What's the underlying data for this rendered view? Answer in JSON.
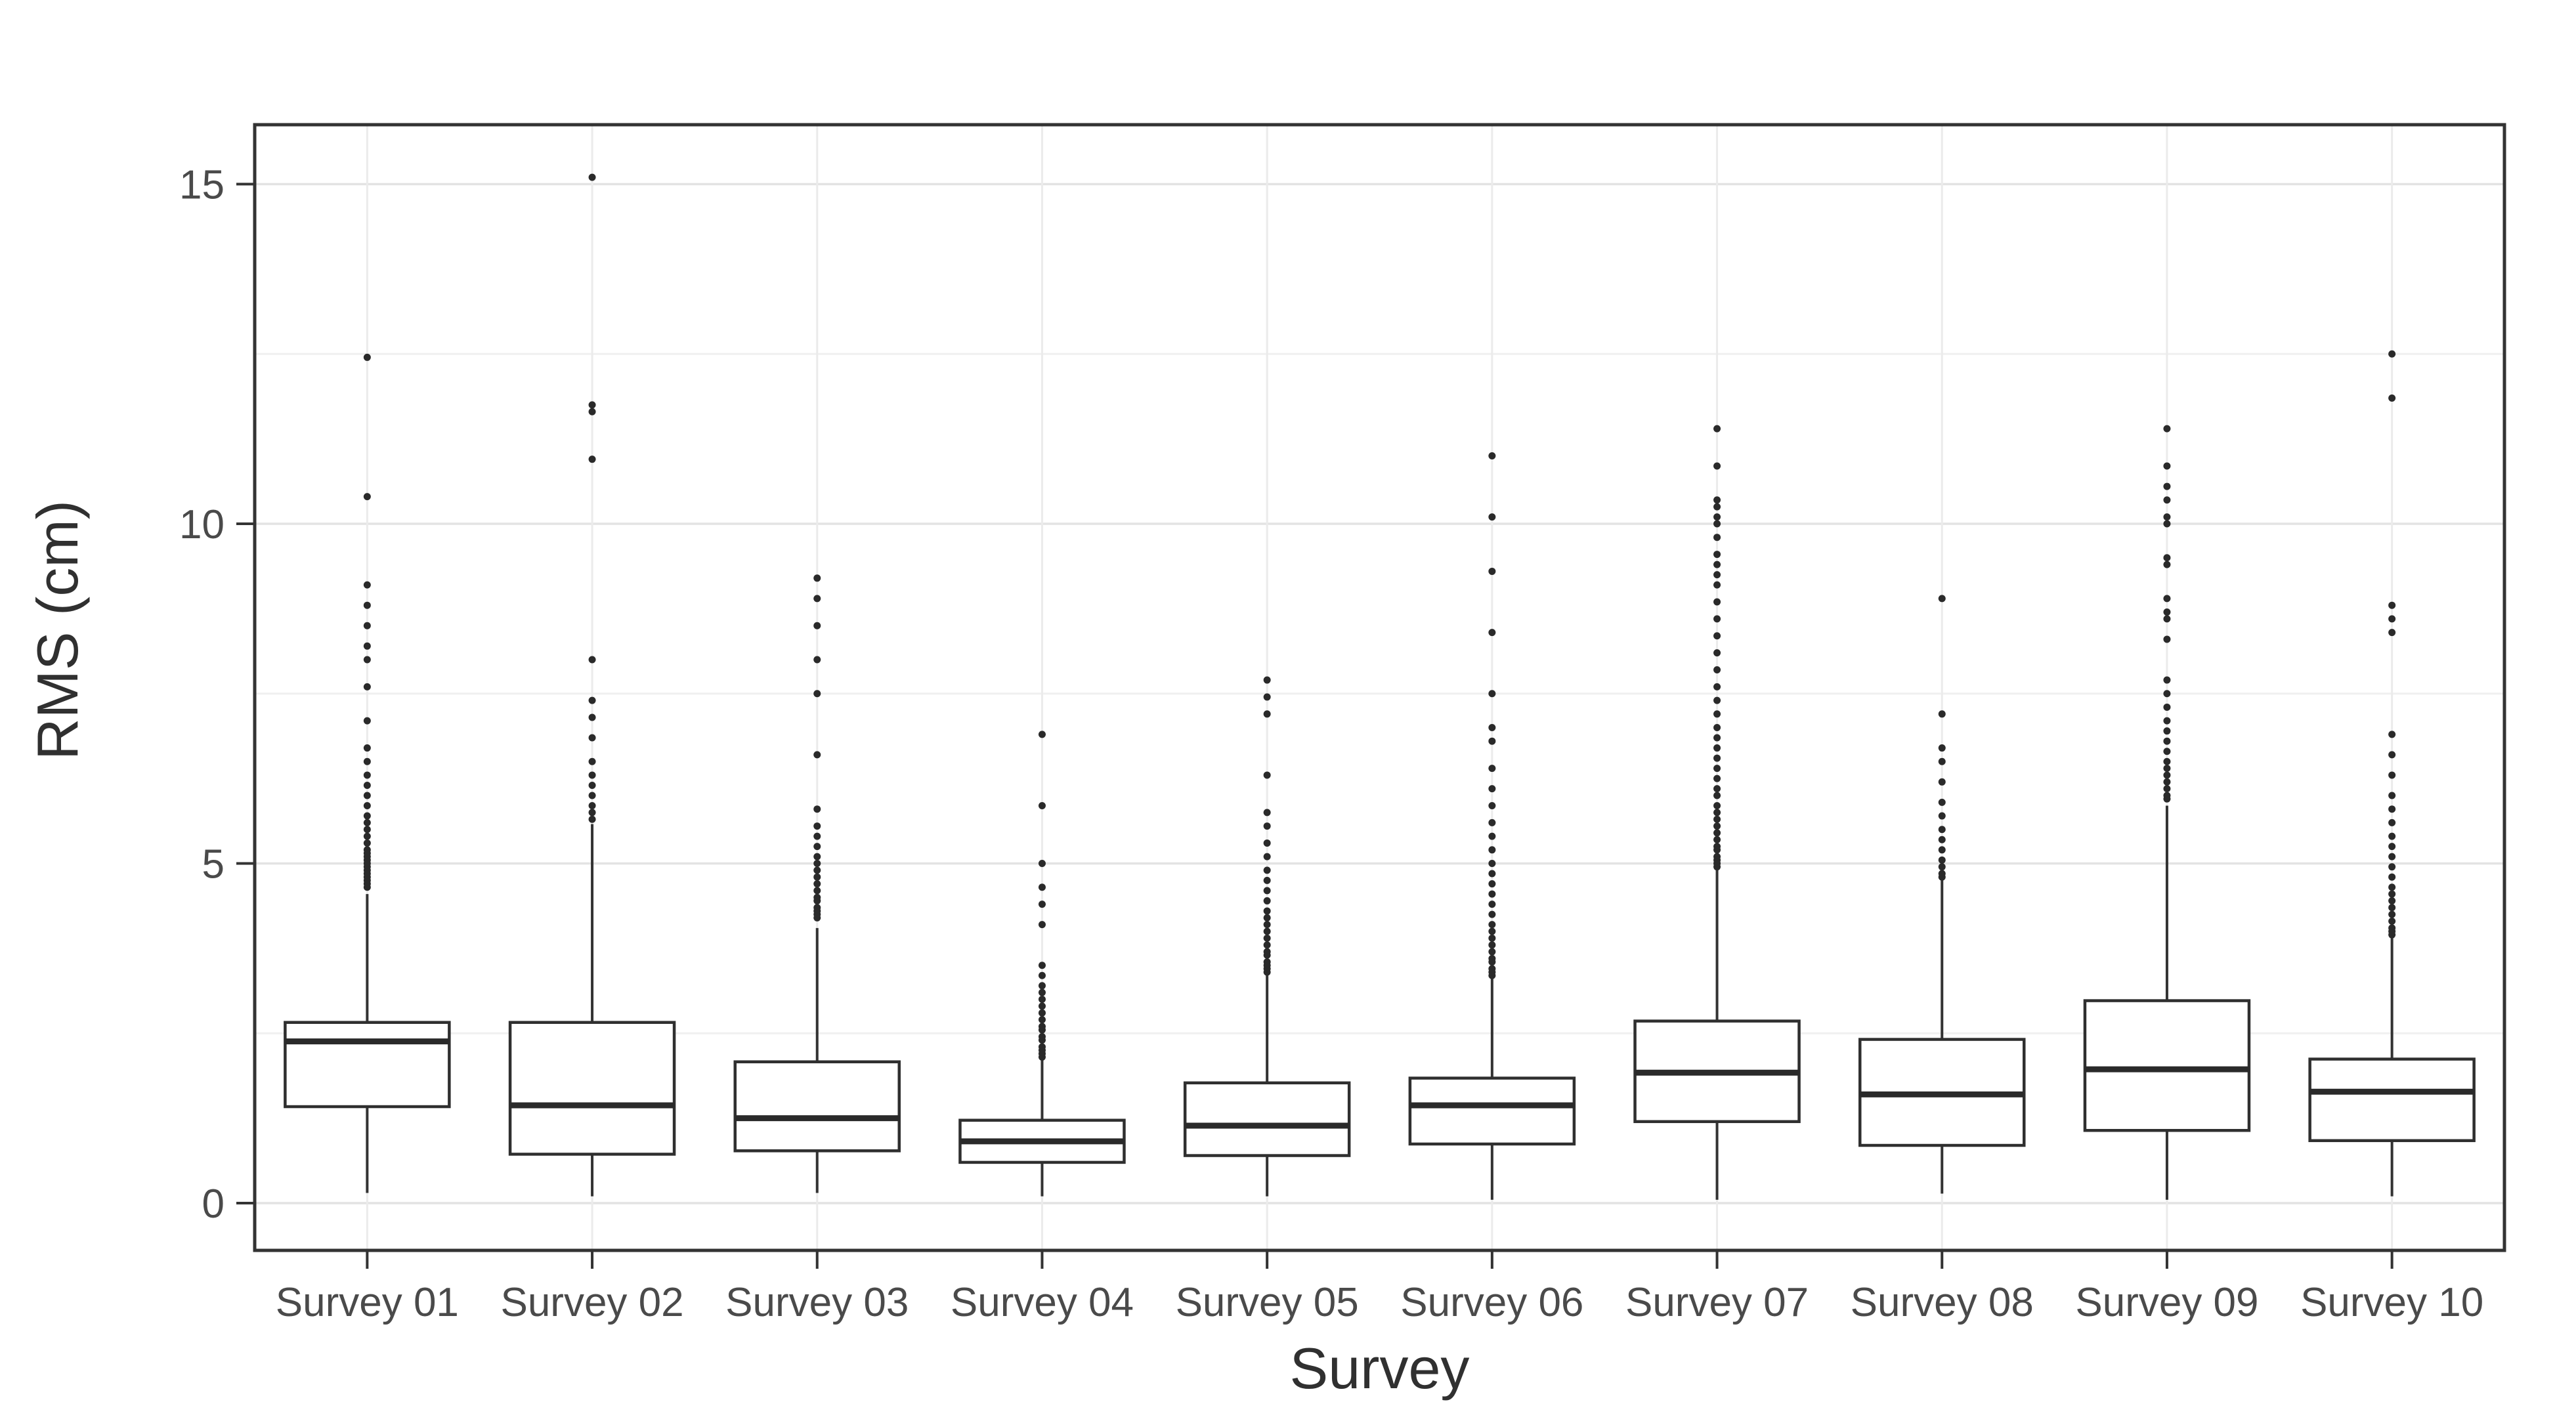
{
  "colors": {
    "figure_background": "#ffffff",
    "panel_background": "#ffffff",
    "panel_border": "#333333",
    "box_stroke": "#2f2f2f",
    "box_fill": "#ffffff",
    "median_stroke": "#2a2a2a",
    "whisker_stroke": "#333333",
    "outlier_fill": "#2a2a2a",
    "grid_major": "#e3e3e3",
    "grid_minor": "#f0f0f0",
    "grid_vertical": "#ebebeb",
    "tick_mark": "#333333",
    "tick_label_color": "#4a4a4a",
    "axis_title_color": "#303030"
  },
  "chart_data": {
    "type": "boxplot",
    "title": "",
    "xlabel": "Survey",
    "ylabel": "RMS (cm)",
    "legend": "none",
    "grid": "horizontal major+minor, vertical major per category",
    "ylim": [
      -0.7,
      15.87
    ],
    "y_ticks": [
      0,
      5,
      10,
      15
    ],
    "y_minor_ticks": [
      2.5,
      7.5,
      12.5
    ],
    "categories": [
      "Survey 01",
      "Survey 02",
      "Survey 03",
      "Survey 04",
      "Survey 05",
      "Survey 06",
      "Survey 07",
      "Survey 08",
      "Survey 09",
      "Survey 10"
    ],
    "series": [
      {
        "label": "Survey 01",
        "whisker_low": 0.15,
        "q1": 1.42,
        "median": 2.38,
        "q3": 2.66,
        "whisker_high": 4.55,
        "outliers": [
          4.65,
          4.7,
          4.75,
          4.8,
          4.85,
          4.9,
          4.95,
          5.0,
          5.05,
          5.1,
          5.15,
          5.2,
          5.3,
          5.4,
          5.5,
          5.6,
          5.7,
          5.85,
          6.0,
          6.15,
          6.3,
          6.5,
          6.7,
          7.1,
          7.6,
          8.0,
          8.2,
          8.5,
          8.8,
          9.1,
          10.4,
          12.45
        ]
      },
      {
        "label": "Survey 02",
        "whisker_low": 0.1,
        "q1": 0.72,
        "median": 1.44,
        "q3": 2.66,
        "whisker_high": 5.58,
        "outliers": [
          5.65,
          5.75,
          5.85,
          6.0,
          6.15,
          6.3,
          6.5,
          6.85,
          7.15,
          7.4,
          8.0,
          10.95,
          11.65,
          11.75,
          15.1
        ]
      },
      {
        "label": "Survey 03",
        "whisker_low": 0.15,
        "q1": 0.77,
        "median": 1.25,
        "q3": 2.08,
        "whisker_high": 4.05,
        "outliers": [
          4.2,
          4.25,
          4.3,
          4.35,
          4.45,
          4.5,
          4.6,
          4.7,
          4.8,
          4.9,
          5.0,
          5.1,
          5.25,
          5.4,
          5.55,
          5.8,
          6.6,
          7.5,
          8.0,
          8.5,
          8.9,
          9.2
        ]
      },
      {
        "label": "Survey 04",
        "whisker_low": 0.1,
        "q1": 0.6,
        "median": 0.91,
        "q3": 1.22,
        "whisker_high": 2.12,
        "outliers": [
          2.15,
          2.2,
          2.25,
          2.3,
          2.4,
          2.45,
          2.55,
          2.6,
          2.7,
          2.8,
          2.9,
          3.0,
          3.1,
          3.2,
          3.35,
          3.5,
          4.1,
          4.4,
          4.65,
          5.0,
          5.85,
          6.9
        ]
      },
      {
        "label": "Survey 05",
        "whisker_low": 0.1,
        "q1": 0.7,
        "median": 1.14,
        "q3": 1.77,
        "whisker_high": 3.35,
        "outliers": [
          3.4,
          3.45,
          3.5,
          3.55,
          3.65,
          3.7,
          3.8,
          3.9,
          4.0,
          4.1,
          4.2,
          4.3,
          4.45,
          4.6,
          4.75,
          4.9,
          5.1,
          5.3,
          5.55,
          5.75,
          6.3,
          7.2,
          7.45,
          7.7
        ]
      },
      {
        "label": "Survey 06",
        "whisker_low": 0.05,
        "q1": 0.87,
        "median": 1.44,
        "q3": 1.84,
        "whisker_high": 3.3,
        "outliers": [
          3.35,
          3.4,
          3.45,
          3.55,
          3.6,
          3.7,
          3.8,
          3.9,
          4.0,
          4.1,
          4.25,
          4.4,
          4.55,
          4.7,
          4.85,
          5.0,
          5.2,
          5.4,
          5.6,
          5.85,
          6.1,
          6.4,
          6.8,
          7.0,
          7.5,
          8.4,
          9.3,
          10.1,
          11.0
        ]
      },
      {
        "label": "Survey 07",
        "whisker_low": 0.05,
        "q1": 1.2,
        "median": 1.92,
        "q3": 2.68,
        "whisker_high": 4.9,
        "outliers": [
          4.95,
          5.0,
          5.05,
          5.1,
          5.2,
          5.25,
          5.35,
          5.45,
          5.55,
          5.65,
          5.75,
          5.85,
          6.0,
          6.1,
          6.25,
          6.4,
          6.55,
          6.7,
          6.85,
          7.0,
          7.2,
          7.4,
          7.6,
          7.85,
          8.1,
          8.35,
          8.6,
          8.85,
          9.1,
          9.25,
          9.4,
          9.55,
          9.8,
          10.0,
          10.1,
          10.25,
          10.35,
          10.85,
          11.4
        ]
      },
      {
        "label": "Survey 08",
        "whisker_low": 0.14,
        "q1": 0.85,
        "median": 1.6,
        "q3": 2.41,
        "whisker_high": 4.75,
        "outliers": [
          4.8,
          4.85,
          4.95,
          5.05,
          5.2,
          5.35,
          5.5,
          5.7,
          5.9,
          6.2,
          6.5,
          6.7,
          7.2,
          8.9
        ]
      },
      {
        "label": "Survey 09",
        "whisker_low": 0.05,
        "q1": 1.07,
        "median": 1.97,
        "q3": 2.98,
        "whisker_high": 5.85,
        "outliers": [
          5.95,
          6.0,
          6.1,
          6.2,
          6.3,
          6.4,
          6.5,
          6.65,
          6.8,
          6.95,
          7.1,
          7.3,
          7.5,
          7.7,
          8.3,
          8.6,
          8.7,
          8.9,
          9.4,
          9.5,
          10.0,
          10.1,
          10.35,
          10.55,
          10.85,
          11.4
        ]
      },
      {
        "label": "Survey 10",
        "whisker_low": 0.1,
        "q1": 0.92,
        "median": 1.64,
        "q3": 2.12,
        "whisker_high": 3.9,
        "outliers": [
          3.95,
          4.0,
          4.05,
          4.15,
          4.25,
          4.35,
          4.45,
          4.55,
          4.65,
          4.8,
          4.95,
          5.1,
          5.25,
          5.4,
          5.6,
          5.8,
          6.0,
          6.3,
          6.6,
          6.9,
          8.4,
          8.6,
          8.8,
          11.85,
          12.5
        ]
      }
    ]
  }
}
